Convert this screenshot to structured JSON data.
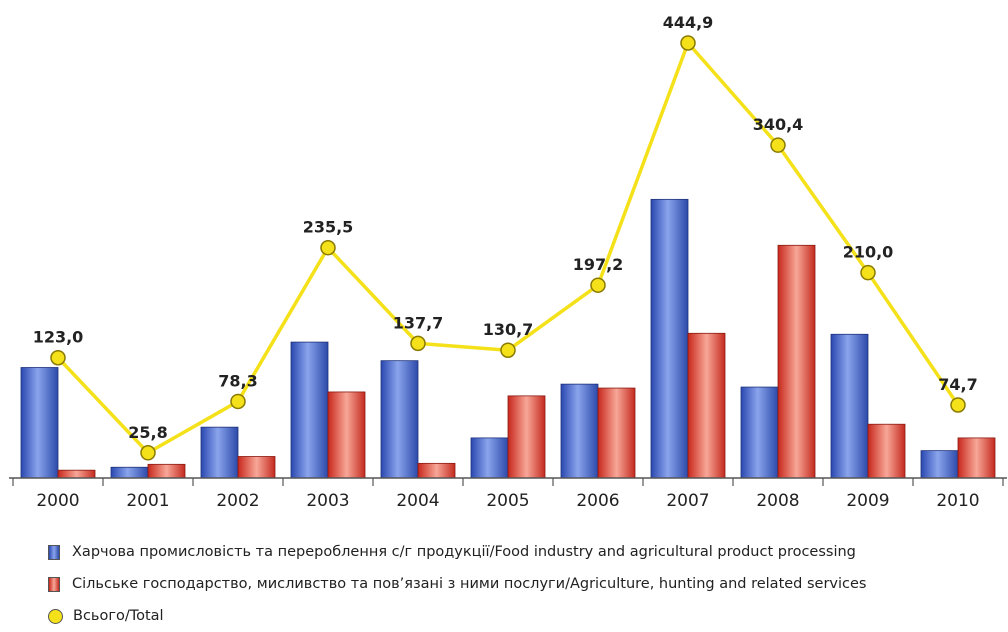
{
  "chart_data": {
    "type": "bar",
    "categories": [
      "2000",
      "2001",
      "2002",
      "2003",
      "2004",
      "2005",
      "2006",
      "2007",
      "2008",
      "2009",
      "2010"
    ],
    "series": [
      {
        "name": "Харчова промисловість та перероблення с/г продукції/Food industry and agricultural product processing",
        "kind": "bar",
        "color": "#3a5cc4",
        "values": [
          113,
          11,
          52,
          139,
          120,
          41,
          96,
          285,
          93,
          147,
          28
        ]
      },
      {
        "name": "Сільське господарство, мисливство та пов’язані з ними послуги/Agriculture, hunting and related services",
        "kind": "bar",
        "color": "#e03a2a",
        "values": [
          8,
          14,
          22,
          88,
          15,
          84,
          92,
          148,
          238,
          55,
          41
        ]
      },
      {
        "name": "Всього/Total",
        "kind": "line",
        "color": "#f5e11a",
        "values": [
          123.0,
          25.8,
          78.3,
          235.5,
          137.7,
          130.7,
          197.2,
          444.9,
          340.4,
          210.0,
          74.7
        ],
        "labels": [
          "123,0",
          "25,8",
          "78,3",
          "235,5",
          "137,7",
          "130,7",
          "197,2",
          "444,9",
          "340,4",
          "210,0",
          "74,7"
        ]
      }
    ],
    "ylim": [
      0,
      480
    ],
    "grid": false,
    "legend_placement": "bottom"
  }
}
